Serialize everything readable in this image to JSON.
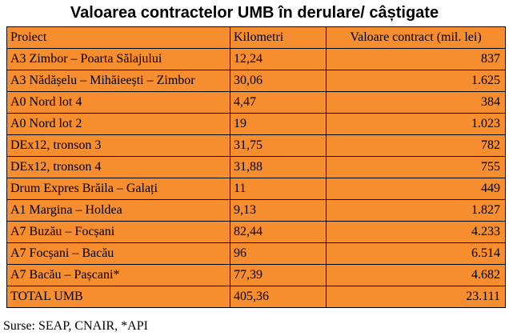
{
  "title": "Valoarea contractelor UMB în derulare/ câștigate",
  "colors": {
    "table_fill": "#f68d2e",
    "border": "#000000"
  },
  "table": {
    "headers": [
      "Proiect",
      "Kilometri",
      "Valoare contract (mil. lei)"
    ],
    "rows": [
      [
        "A3 Zimbor – Poarta Sălajului",
        "12,24",
        "837"
      ],
      [
        "A3 Nădășelu – Mihăieești – Zimbor",
        "30,06",
        "1.625"
      ],
      [
        "A0 Nord lot 4",
        "4,47",
        "384"
      ],
      [
        "A0 Nord lot 2",
        "19",
        "1.023"
      ],
      [
        "DEx12, tronson 3",
        "31,75",
        "782"
      ],
      [
        "DEx12, tronson 4",
        "31,88",
        "755"
      ],
      [
        "Drum Expres Brăila – Galați",
        "11",
        "449"
      ],
      [
        "A1 Margina – Holdea",
        "9,13",
        "1.827"
      ],
      [
        "A7 Buzău – Focșani",
        "82,44",
        "4.233"
      ],
      [
        "A7 Focșani – Bacău",
        "96",
        "6.514"
      ],
      [
        "A7 Bacău – Pașcani*",
        "77,39",
        "4.682"
      ],
      [
        "TOTAL UMB",
        "405,36",
        "23.111"
      ]
    ]
  },
  "source": "Surse: SEAP, CNAIR, *API"
}
